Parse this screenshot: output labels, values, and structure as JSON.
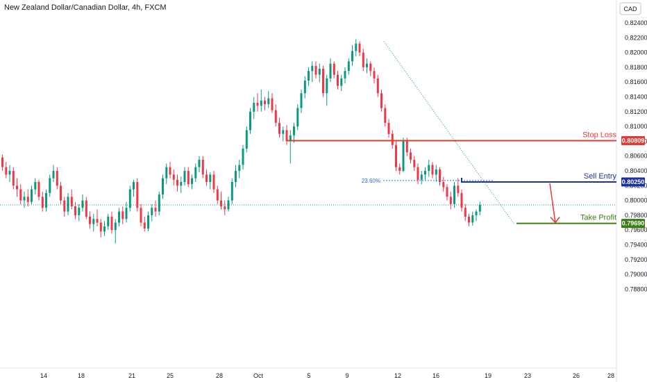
{
  "header": {
    "title": "New Zealand Dollar/Canadian Dollar, 4h, FXCM"
  },
  "price_axis": {
    "currency": "CAD"
  },
  "colors": {
    "up": "#089981",
    "down": "#f23645",
    "stop": "#e53935",
    "entry": "#1a2fa8",
    "take": "#3a7d12",
    "fib": "#2962ff",
    "arrow": "#e53935",
    "last_price_line": "#089981"
  },
  "chart_data": {
    "type": "candlestick",
    "title": "New Zealand Dollar/Canadian Dollar, 4h, FXCM",
    "ylim": [
      0.7875,
      0.825
    ],
    "y_ticks": [
      "0.82400",
      "0.82200",
      "0.82000",
      "0.81800",
      "0.81600",
      "0.81400",
      "0.81200",
      "0.81000",
      "0.80800",
      "0.80600",
      "0.80400",
      "0.80200",
      "0.80000",
      "0.79800",
      "0.79600",
      "0.79400",
      "0.79200",
      "0.79000",
      "0.78800"
    ],
    "x_ticks": [
      "14",
      "18",
      "21",
      "25",
      "28",
      "Oct",
      "5",
      "9",
      "12",
      "16",
      "19",
      "23",
      "26",
      "28"
    ],
    "grid": false,
    "last_price": 0.7994,
    "candles": [
      [
        0.8058,
        0.8062,
        0.804,
        0.8045
      ],
      [
        0.8045,
        0.8052,
        0.803,
        0.8035
      ],
      [
        0.8035,
        0.8048,
        0.8025,
        0.804
      ],
      [
        0.804,
        0.8045,
        0.8015,
        0.802
      ],
      [
        0.802,
        0.803,
        0.8005,
        0.8015
      ],
      [
        0.8015,
        0.8022,
        0.7995,
        0.8
      ],
      [
        0.8,
        0.8012,
        0.799,
        0.8005
      ],
      [
        0.8005,
        0.8015,
        0.7992,
        0.7998
      ],
      [
        0.7998,
        0.802,
        0.7995,
        0.8015
      ],
      [
        0.8015,
        0.803,
        0.8008,
        0.8025
      ],
      [
        0.8025,
        0.8028,
        0.8,
        0.8005
      ],
      [
        0.8005,
        0.8012,
        0.7985,
        0.799
      ],
      [
        0.799,
        0.8015,
        0.7985,
        0.801
      ],
      [
        0.801,
        0.8035,
        0.8005,
        0.803
      ],
      [
        0.803,
        0.8048,
        0.8025,
        0.804
      ],
      [
        0.804,
        0.8045,
        0.8015,
        0.802
      ],
      [
        0.802,
        0.8025,
        0.7995,
        0.8
      ],
      [
        0.8,
        0.8005,
        0.7978,
        0.7985
      ],
      [
        0.7985,
        0.801,
        0.798,
        0.8005
      ],
      [
        0.8005,
        0.8015,
        0.7988,
        0.7992
      ],
      [
        0.7992,
        0.7998,
        0.7975,
        0.798
      ],
      [
        0.798,
        0.7995,
        0.7972,
        0.799
      ],
      [
        0.799,
        0.8008,
        0.7985,
        0.8
      ],
      [
        0.8,
        0.8005,
        0.7975,
        0.7978
      ],
      [
        0.7978,
        0.7985,
        0.7962,
        0.7968
      ],
      [
        0.7968,
        0.7982,
        0.7958,
        0.7975
      ],
      [
        0.7975,
        0.7988,
        0.7965,
        0.797
      ],
      [
        0.797,
        0.7975,
        0.795,
        0.7958
      ],
      [
        0.7958,
        0.7972,
        0.7952,
        0.7965
      ],
      [
        0.7965,
        0.7982,
        0.796,
        0.7978
      ],
      [
        0.7978,
        0.7985,
        0.7955,
        0.796
      ],
      [
        0.796,
        0.7975,
        0.7942,
        0.797
      ],
      [
        0.797,
        0.799,
        0.7965,
        0.7985
      ],
      [
        0.7985,
        0.7992,
        0.7968,
        0.7975
      ],
      [
        0.7975,
        0.7998,
        0.797,
        0.799
      ],
      [
        0.799,
        0.802,
        0.7985,
        0.8015
      ],
      [
        0.8015,
        0.8028,
        0.8005,
        0.8025
      ],
      [
        0.8025,
        0.803,
        0.7985,
        0.799
      ],
      [
        0.799,
        0.7995,
        0.7965,
        0.797
      ],
      [
        0.797,
        0.7978,
        0.7958,
        0.7962
      ],
      [
        0.7962,
        0.7985,
        0.7958,
        0.798
      ],
      [
        0.798,
        0.7995,
        0.7972,
        0.799
      ],
      [
        0.799,
        0.8,
        0.7978,
        0.7985
      ],
      [
        0.7985,
        0.8012,
        0.798,
        0.8008
      ],
      [
        0.8008,
        0.8035,
        0.8002,
        0.803
      ],
      [
        0.803,
        0.805,
        0.8022,
        0.8045
      ],
      [
        0.8045,
        0.8052,
        0.803,
        0.8035
      ],
      [
        0.8035,
        0.8042,
        0.802,
        0.8028
      ],
      [
        0.8028,
        0.8035,
        0.8012,
        0.802
      ],
      [
        0.802,
        0.8032,
        0.801,
        0.8025
      ],
      [
        0.8025,
        0.8045,
        0.802,
        0.804
      ],
      [
        0.804,
        0.8045,
        0.8018,
        0.8022
      ],
      [
        0.8022,
        0.8035,
        0.8015,
        0.803
      ],
      [
        0.803,
        0.805,
        0.8025,
        0.8045
      ],
      [
        0.8045,
        0.806,
        0.8038,
        0.8055
      ],
      [
        0.8055,
        0.806,
        0.803,
        0.8035
      ],
      [
        0.8035,
        0.8042,
        0.802,
        0.8025
      ],
      [
        0.8025,
        0.8038,
        0.8015,
        0.8035
      ],
      [
        0.8035,
        0.804,
        0.801,
        0.8015
      ],
      [
        0.8015,
        0.802,
        0.7995,
        0.8
      ],
      [
        0.8,
        0.8012,
        0.7988,
        0.7992
      ],
      [
        0.7992,
        0.8,
        0.798,
        0.7988
      ],
      [
        0.7988,
        0.8005,
        0.7985,
        0.8
      ],
      [
        0.8,
        0.803,
        0.7995,
        0.8025
      ],
      [
        0.8025,
        0.8048,
        0.8018,
        0.804
      ],
      [
        0.804,
        0.8055,
        0.803,
        0.8048
      ],
      [
        0.8048,
        0.8075,
        0.8042,
        0.807
      ],
      [
        0.807,
        0.81,
        0.8065,
        0.8095
      ],
      [
        0.8095,
        0.8125,
        0.809,
        0.812
      ],
      [
        0.812,
        0.814,
        0.811,
        0.8132
      ],
      [
        0.8132,
        0.8145,
        0.812,
        0.8128
      ],
      [
        0.8128,
        0.815,
        0.812,
        0.8135
      ],
      [
        0.8135,
        0.814,
        0.8122,
        0.813
      ],
      [
        0.813,
        0.8148,
        0.8125,
        0.8138
      ],
      [
        0.8138,
        0.8145,
        0.8118,
        0.8122
      ],
      [
        0.8122,
        0.813,
        0.81,
        0.8105
      ],
      [
        0.8105,
        0.8112,
        0.8085,
        0.809
      ],
      [
        0.809,
        0.81,
        0.808,
        0.8095
      ],
      [
        0.8095,
        0.8102,
        0.8075,
        0.808
      ],
      [
        0.808,
        0.8095,
        0.805,
        0.8088
      ],
      [
        0.8088,
        0.8105,
        0.8078,
        0.81
      ],
      [
        0.81,
        0.813,
        0.8095,
        0.8125
      ],
      [
        0.8125,
        0.815,
        0.8118,
        0.8145
      ],
      [
        0.8145,
        0.8168,
        0.8138,
        0.8162
      ],
      [
        0.8162,
        0.818,
        0.8155,
        0.8175
      ],
      [
        0.8175,
        0.8188,
        0.816,
        0.8182
      ],
      [
        0.8182,
        0.8188,
        0.8165,
        0.817
      ],
      [
        0.817,
        0.8185,
        0.816,
        0.8178
      ],
      [
        0.8178,
        0.8182,
        0.814,
        0.8145
      ],
      [
        0.8145,
        0.817,
        0.8128,
        0.8165
      ],
      [
        0.8165,
        0.8192,
        0.816,
        0.8185
      ],
      [
        0.8185,
        0.8188,
        0.8165,
        0.817
      ],
      [
        0.817,
        0.8175,
        0.815,
        0.8155
      ],
      [
        0.8155,
        0.817,
        0.8148,
        0.8165
      ],
      [
        0.8165,
        0.818,
        0.8158,
        0.8175
      ],
      [
        0.8175,
        0.8192,
        0.817,
        0.8188
      ],
      [
        0.8188,
        0.821,
        0.8182,
        0.8202
      ],
      [
        0.8202,
        0.8218,
        0.8195,
        0.8212
      ],
      [
        0.8212,
        0.8215,
        0.8195,
        0.82
      ],
      [
        0.82,
        0.8205,
        0.8175,
        0.818
      ],
      [
        0.818,
        0.8192,
        0.8172,
        0.8185
      ],
      [
        0.8185,
        0.8188,
        0.8168,
        0.8175
      ],
      [
        0.8175,
        0.818,
        0.8158,
        0.8165
      ],
      [
        0.8165,
        0.817,
        0.814,
        0.8145
      ],
      [
        0.8145,
        0.815,
        0.812,
        0.8125
      ],
      [
        0.8125,
        0.813,
        0.81,
        0.8105
      ],
      [
        0.8105,
        0.811,
        0.8085,
        0.809
      ],
      [
        0.809,
        0.8095,
        0.807,
        0.8075
      ],
      [
        0.8075,
        0.808,
        0.804,
        0.8045
      ],
      [
        0.8045,
        0.805,
        0.8035,
        0.804
      ],
      [
        0.804,
        0.8085,
        0.8038,
        0.808
      ],
      [
        0.808,
        0.8085,
        0.806,
        0.8065
      ],
      [
        0.8065,
        0.807,
        0.805,
        0.8055
      ],
      [
        0.8055,
        0.806,
        0.804,
        0.8045
      ],
      [
        0.8045,
        0.805,
        0.8022,
        0.8028
      ],
      [
        0.8028,
        0.804,
        0.8022,
        0.8035
      ],
      [
        0.8035,
        0.8045,
        0.8028,
        0.804
      ],
      [
        0.804,
        0.8055,
        0.8032,
        0.8048
      ],
      [
        0.8048,
        0.8052,
        0.803,
        0.8035
      ],
      [
        0.8035,
        0.8048,
        0.8025,
        0.8042
      ],
      [
        0.8042,
        0.8045,
        0.802,
        0.8025
      ],
      [
        0.8025,
        0.8032,
        0.8012,
        0.8018
      ],
      [
        0.8018,
        0.8022,
        0.8,
        0.8005
      ],
      [
        0.8005,
        0.8012,
        0.7988,
        0.7995
      ],
      [
        0.7995,
        0.8025,
        0.799,
        0.802
      ],
      [
        0.802,
        0.803,
        0.8005,
        0.801
      ],
      [
        0.801,
        0.8015,
        0.7985,
        0.799
      ],
      [
        0.799,
        0.7995,
        0.7972,
        0.7978
      ],
      [
        0.7978,
        0.7982,
        0.7965,
        0.797
      ],
      [
        0.797,
        0.7985,
        0.7966,
        0.798
      ],
      [
        0.798,
        0.7988,
        0.7972,
        0.7985
      ],
      [
        0.7985,
        0.7998,
        0.798,
        0.7994
      ]
    ],
    "levels": [
      {
        "name": "Stop Loss",
        "value": 0.80809,
        "badge": "0.80809"
      },
      {
        "name": "Sell Entry",
        "value": 0.8025,
        "badge": "0.80250"
      },
      {
        "name": "Take Profit",
        "value": 0.7969,
        "badge": "0.79690"
      }
    ],
    "fib_label": "23.60%",
    "fib_value": 0.8027
  }
}
